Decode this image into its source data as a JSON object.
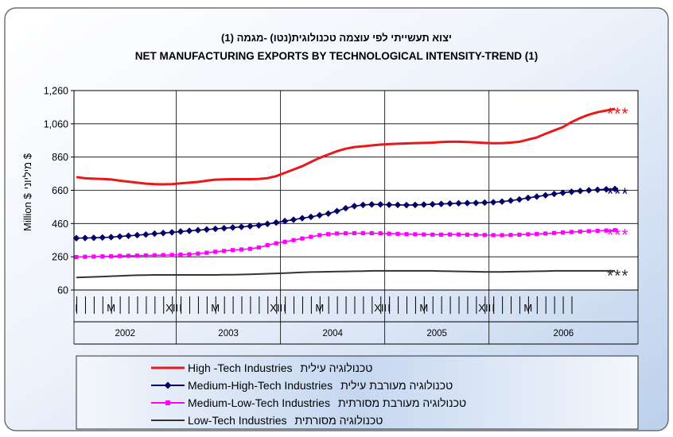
{
  "chart_data": {
    "type": "line",
    "title_hebrew": "יצוא תעשייתי לפי עוצמה טכנולוגית(נטו) -מגמה (1)",
    "title": "NET MANUFACTURING EXPORTS BY TECHNOLOGICAL INTENSITY-TREND (1)",
    "ylabel_hebrew": "מיליוני $",
    "ylabel": "Million $",
    "ylim": [
      60,
      1260
    ],
    "y_ticks": [
      "60",
      "260",
      "460",
      "660",
      "860",
      "1,060",
      "1,260"
    ],
    "x_month_labels": [
      "I",
      "M",
      "XII",
      "I",
      "M",
      "XII",
      "I",
      "M",
      "XII",
      "I",
      "M",
      "XII",
      "I",
      "M"
    ],
    "years": [
      "2002",
      "2003",
      "2004",
      "2005",
      "2006"
    ],
    "months_per_year": [
      12,
      12,
      12,
      12,
      6
    ],
    "estimate_marker": "***",
    "series": [
      {
        "name": "High -Tech Industries",
        "name_hebrew": "טכנולוגיה עילית",
        "color": "#e8191a",
        "marker": "none",
        "values": [
          740,
          732,
          730,
          728,
          725,
          718,
          712,
          706,
          700,
          697,
          696,
          697,
          702,
          706,
          710,
          718,
          724,
          726,
          727,
          727,
          727,
          728,
          733,
          745,
          765,
          785,
          805,
          830,
          855,
          875,
          895,
          910,
          920,
          925,
          930,
          935,
          938,
          940,
          942,
          944,
          945,
          947,
          950,
          952,
          952,
          950,
          948,
          945,
          943,
          944,
          947,
          952,
          965,
          978,
          1000,
          1020,
          1040,
          1070,
          1095,
          1115,
          1130,
          1140,
          1150
        ]
      },
      {
        "name": "Medium-High-Tech Industries",
        "name_hebrew": "טכנולוגיה מעורבת עילית",
        "color": "#000066",
        "marker": "diamond",
        "values": [
          372,
          373,
          374,
          376,
          378,
          382,
          386,
          390,
          394,
          399,
          403,
          407,
          412,
          416,
          420,
          424,
          428,
          432,
          436,
          440,
          444,
          449,
          458,
          466,
          475,
          483,
          492,
          500,
          510,
          520,
          535,
          552,
          565,
          572,
          575,
          575,
          573,
          572,
          571,
          572,
          574,
          576,
          578,
          580,
          582,
          583,
          584,
          586,
          588,
          592,
          598,
          605,
          614,
          622,
          630,
          638,
          645,
          651,
          656,
          660,
          663,
          666,
          668
        ]
      },
      {
        "name": "Medium-Low-Tech Industries",
        "name_hebrew": "טכנולוגיה מעורבת מסורתית",
        "color": "#ff00ff",
        "marker": "square",
        "values": [
          258,
          260,
          261,
          262,
          263,
          265,
          266,
          267,
          268,
          269,
          270,
          271,
          273,
          275,
          279,
          284,
          290,
          295,
          300,
          304,
          308,
          316,
          330,
          341,
          350,
          360,
          370,
          380,
          390,
          396,
          400,
          401,
          402,
          402,
          402,
          401,
          399,
          398,
          396,
          395,
          394,
          393,
          393,
          394,
          394,
          393,
          392,
          391,
          390,
          390,
          391,
          393,
          395,
          397,
          400,
          403,
          406,
          409,
          412,
          414,
          416,
          418,
          420
        ]
      },
      {
        "name": "Low-Tech Industries",
        "name_hebrew": "טכנולוגיה מסורתית",
        "color": "#333333",
        "marker": "none",
        "values": [
          135,
          137,
          139,
          141,
          143,
          145,
          147,
          149,
          150,
          151,
          151,
          151,
          151,
          151,
          151,
          151,
          151,
          152,
          152,
          153,
          154,
          156,
          158,
          160,
          162,
          164,
          166,
          168,
          169,
          170,
          171,
          172,
          173,
          174,
          175,
          175,
          175,
          175,
          175,
          175,
          175,
          175,
          174,
          173,
          172,
          171,
          170,
          169,
          169,
          169,
          170,
          171,
          172,
          173,
          174,
          175,
          175,
          175,
          175,
          175,
          175,
          175,
          175
        ]
      }
    ]
  }
}
